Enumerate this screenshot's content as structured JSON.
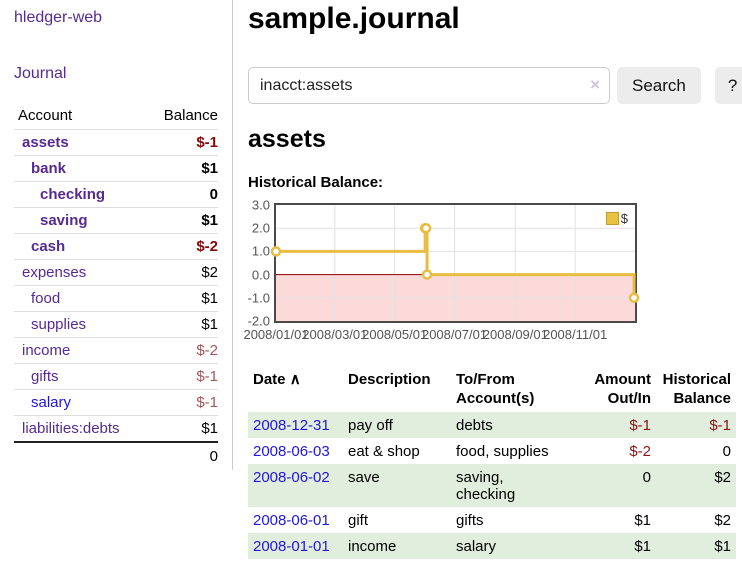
{
  "app": {
    "title": "hledger-web"
  },
  "sidebar": {
    "journal_link": "Journal",
    "accounts_table": {
      "headers": {
        "account": "Account",
        "balance": "Balance"
      },
      "rows": [
        {
          "name": "assets",
          "depth": 1,
          "bold": true,
          "balance": "$-1",
          "negative": true,
          "unvisited": false
        },
        {
          "name": "bank",
          "depth": 2,
          "bold": true,
          "balance": "$1",
          "negative": false,
          "unvisited": false
        },
        {
          "name": "checking",
          "depth": 3,
          "bold": true,
          "balance": "0",
          "negative": false,
          "unvisited": false
        },
        {
          "name": "saving",
          "depth": 3,
          "bold": true,
          "balance": "$1",
          "negative": false,
          "unvisited": false
        },
        {
          "name": "cash",
          "depth": 2,
          "bold": true,
          "balance": "$-2",
          "negative": true,
          "unvisited": false
        },
        {
          "name": "expenses",
          "depth": 1,
          "bold": false,
          "balance": "$2",
          "negative": false,
          "unvisited": false
        },
        {
          "name": "food",
          "depth": 2,
          "bold": false,
          "balance": "$1",
          "negative": false,
          "unvisited": false
        },
        {
          "name": "supplies",
          "depth": 2,
          "bold": false,
          "balance": "$1",
          "negative": false,
          "unvisited": false
        },
        {
          "name": "income",
          "depth": 1,
          "bold": false,
          "balance": "$-2",
          "negative": true,
          "unvisited": false
        },
        {
          "name": "gifts",
          "depth": 2,
          "bold": false,
          "balance": "$-1",
          "negative": true,
          "unvisited": false
        },
        {
          "name": "salary",
          "depth": 2,
          "bold": false,
          "balance": "$-1",
          "negative": true,
          "unvisited": true
        },
        {
          "name": "liabilities:debts",
          "depth": 1,
          "bold": false,
          "balance": "$1",
          "negative": false,
          "unvisited": false
        }
      ],
      "total": "0"
    }
  },
  "main": {
    "title": "sample.journal",
    "search": {
      "value": "inacct:assets",
      "clear_icon": "×",
      "button_label": "Search",
      "help_label": "?"
    },
    "account_heading": "assets",
    "chart_heading": "Historical Balance:"
  },
  "chart_data": {
    "type": "line",
    "title": "Historical Balance",
    "line_style": "steps-after",
    "x_range": [
      "2008-01-01",
      "2009-01-01"
    ],
    "ylim": [
      -2,
      3
    ],
    "points": [
      {
        "date": "2008-01-01",
        "value": 1
      },
      {
        "date": "2008-06-01",
        "value": 2
      },
      {
        "date": "2008-06-02",
        "value": 2
      },
      {
        "date": "2008-06-03",
        "value": 0
      },
      {
        "date": "2008-12-31",
        "value": -1
      }
    ],
    "y_ticks": [
      {
        "value": 3,
        "label": "3.0"
      },
      {
        "value": 2,
        "label": "2.0"
      },
      {
        "value": 1,
        "label": "1.0"
      },
      {
        "value": 0,
        "label": "0.0"
      },
      {
        "value": -1,
        "label": "-1.0"
      },
      {
        "value": -2,
        "label": "-2.0"
      }
    ],
    "x_ticks": [
      {
        "date": "2008-01-01",
        "label": "2008/01/01"
      },
      {
        "date": "2008-03-01",
        "label": "2008/03/01"
      },
      {
        "date": "2008-05-01",
        "label": "2008/05/01"
      },
      {
        "date": "2008-07-01",
        "label": "2008/07/01"
      },
      {
        "date": "2008-09-01",
        "label": "2008/09/01"
      },
      {
        "date": "2008-11-01",
        "label": "2008/11/01"
      }
    ],
    "legend": [
      {
        "label": "$",
        "color": "#e9c23f"
      }
    ],
    "series_color": "#e9bc44",
    "grid_color": "#e2e2e2",
    "zero_line_color": "#8b0000",
    "negative_region_color": "#fcdada",
    "grid": true,
    "legend_position": "top-right"
  },
  "register_table": {
    "headers": {
      "date": "Date",
      "sort_icon": "∧",
      "description": "Description",
      "tofrom_line1": "To/From",
      "tofrom_line2": "Account(s)",
      "amount_line1": "Amount",
      "amount_line2": "Out/In",
      "balance_line1": "Historical",
      "balance_line2": "Balance"
    },
    "rows": [
      {
        "date": "2008-12-31",
        "description": "pay off",
        "accounts": "debts",
        "amount": "$-1",
        "amount_negative": true,
        "balance": "$-1",
        "balance_negative": true
      },
      {
        "date": "2008-06-03",
        "description": "eat & shop",
        "accounts": "food, supplies",
        "amount": "$-2",
        "amount_negative": true,
        "balance": "0",
        "balance_negative": false
      },
      {
        "date": "2008-06-02",
        "description": "save",
        "accounts": "saving, checking",
        "amount": "0",
        "amount_negative": false,
        "balance": "$2",
        "balance_negative": false
      },
      {
        "date": "2008-06-01",
        "description": "gift",
        "accounts": "gifts",
        "amount": "$1",
        "amount_negative": false,
        "balance": "$2",
        "balance_negative": false
      },
      {
        "date": "2008-01-01",
        "description": "income",
        "accounts": "salary",
        "amount": "$1",
        "amount_negative": false,
        "balance": "$1",
        "balance_negative": false
      }
    ]
  },
  "colors": {
    "link_purple": "#562a92",
    "link_blue": "#2016dd",
    "negative_bold_red": "#850909",
    "negative_light_red": "#a35757",
    "negative_table_red": "#8b1414",
    "row_stripe_green": "#e2eedd",
    "button_gray": "#ececec",
    "sidebar_divider": "#cccccc"
  }
}
